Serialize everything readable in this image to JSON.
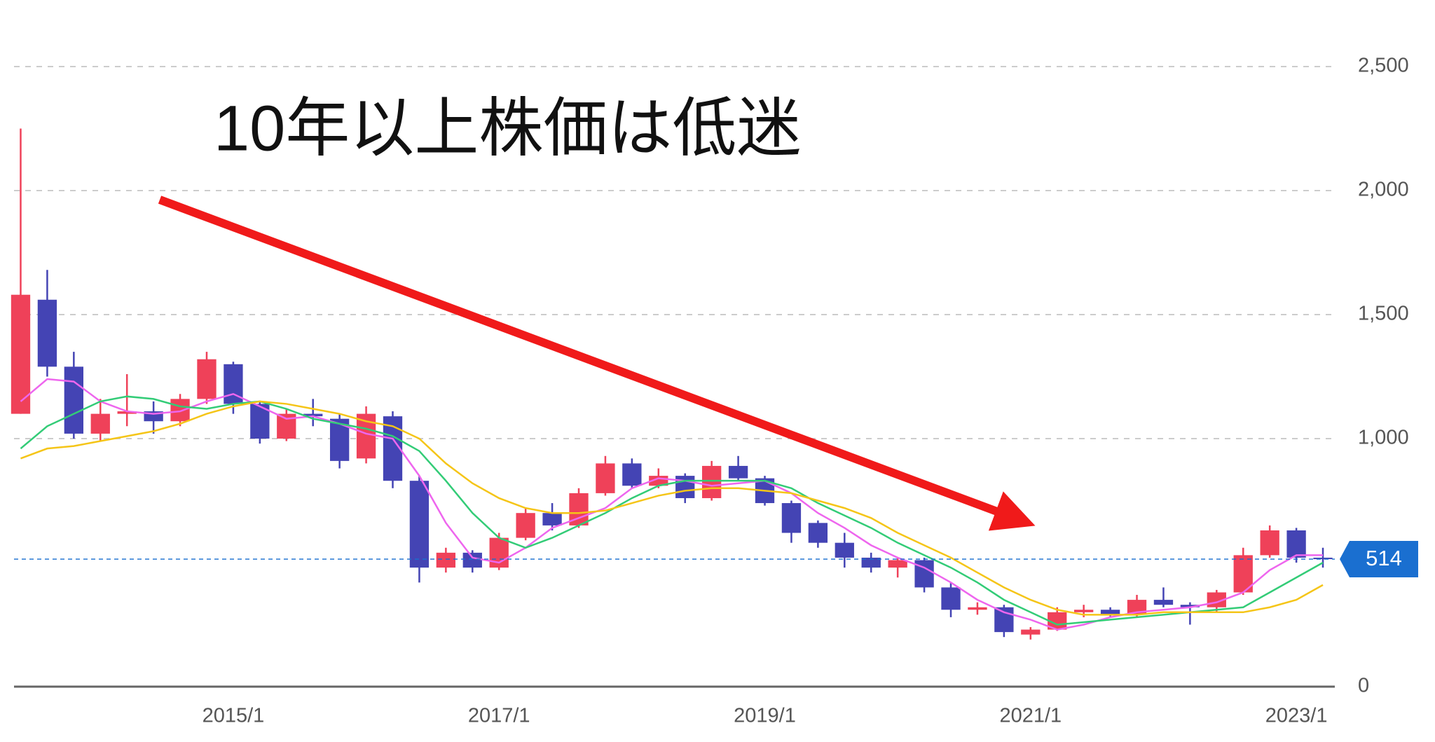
{
  "chart_data": {
    "type": "candlestick",
    "annotation": "10年以上株価は低迷",
    "x": [
      2013.4,
      2013.6,
      2013.8,
      2014.0,
      2014.2,
      2014.4,
      2014.6,
      2014.8,
      2015.0,
      2015.2,
      2015.4,
      2015.6,
      2015.8,
      2016.0,
      2016.2,
      2016.4,
      2016.6,
      2016.8,
      2017.0,
      2017.2,
      2017.4,
      2017.6,
      2017.8,
      2018.0,
      2018.2,
      2018.4,
      2018.6,
      2018.8,
      2019.0,
      2019.2,
      2019.4,
      2019.6,
      2019.8,
      2020.0,
      2020.2,
      2020.4,
      2020.6,
      2020.8,
      2021.0,
      2021.2,
      2021.4,
      2021.6,
      2021.8,
      2022.0,
      2022.2,
      2022.4,
      2022.6,
      2022.8,
      2023.0,
      2023.2
    ],
    "ohlc": [
      [
        1100,
        2250,
        1100,
        1580
      ],
      [
        1560,
        1680,
        1250,
        1290
      ],
      [
        1290,
        1350,
        1000,
        1020
      ],
      [
        1020,
        1160,
        990,
        1100
      ],
      [
        1100,
        1260,
        1050,
        1110
      ],
      [
        1110,
        1150,
        1020,
        1070
      ],
      [
        1070,
        1180,
        1050,
        1160
      ],
      [
        1160,
        1350,
        1140,
        1320
      ],
      [
        1300,
        1310,
        1100,
        1140
      ],
      [
        1140,
        1150,
        980,
        1000
      ],
      [
        1000,
        1120,
        990,
        1100
      ],
      [
        1100,
        1160,
        1050,
        1090
      ],
      [
        1080,
        1100,
        880,
        910
      ],
      [
        920,
        1130,
        900,
        1100
      ],
      [
        1090,
        1110,
        800,
        830
      ],
      [
        830,
        850,
        420,
        480
      ],
      [
        480,
        560,
        460,
        540
      ],
      [
        540,
        550,
        460,
        480
      ],
      [
        480,
        620,
        470,
        600
      ],
      [
        600,
        720,
        590,
        700
      ],
      [
        700,
        740,
        630,
        650
      ],
      [
        650,
        800,
        640,
        780
      ],
      [
        780,
        930,
        770,
        900
      ],
      [
        900,
        920,
        800,
        810
      ],
      [
        810,
        880,
        800,
        850
      ],
      [
        850,
        860,
        740,
        760
      ],
      [
        760,
        910,
        750,
        890
      ],
      [
        890,
        930,
        830,
        840
      ],
      [
        840,
        850,
        730,
        740
      ],
      [
        740,
        750,
        580,
        620
      ],
      [
        660,
        670,
        560,
        580
      ],
      [
        580,
        620,
        480,
        520
      ],
      [
        520,
        540,
        460,
        480
      ],
      [
        480,
        520,
        440,
        510
      ],
      [
        510,
        520,
        380,
        400
      ],
      [
        400,
        420,
        280,
        310
      ],
      [
        310,
        340,
        290,
        320
      ],
      [
        320,
        330,
        200,
        220
      ],
      [
        210,
        240,
        190,
        230
      ],
      [
        230,
        320,
        225,
        300
      ],
      [
        300,
        330,
        280,
        310
      ],
      [
        310,
        320,
        280,
        290
      ],
      [
        290,
        370,
        280,
        350
      ],
      [
        350,
        400,
        320,
        330
      ],
      [
        330,
        340,
        250,
        320
      ],
      [
        320,
        390,
        300,
        380
      ],
      [
        380,
        560,
        370,
        530
      ],
      [
        530,
        650,
        520,
        630
      ],
      [
        630,
        640,
        500,
        520
      ],
      [
        520,
        560,
        480,
        514
      ]
    ],
    "up_color": "#ef4159",
    "down_color": "#4444b4",
    "series": [
      {
        "color": "#ee66ee",
        "values": [
          1150,
          1240,
          1230,
          1150,
          1110,
          1100,
          1110,
          1150,
          1180,
          1130,
          1080,
          1090,
          1060,
          1020,
          1000,
          850,
          660,
          520,
          500,
          560,
          640,
          680,
          720,
          800,
          840,
          830,
          810,
          820,
          830,
          780,
          700,
          640,
          570,
          520,
          480,
          420,
          350,
          300,
          270,
          230,
          250,
          280,
          300,
          310,
          320,
          340,
          380,
          470,
          530,
          530
        ]
      },
      {
        "color": "#33cc77",
        "values": [
          960,
          1050,
          1100,
          1150,
          1170,
          1160,
          1130,
          1120,
          1140,
          1150,
          1120,
          1080,
          1060,
          1040,
          1010,
          950,
          830,
          700,
          600,
          560,
          600,
          650,
          700,
          760,
          810,
          830,
          830,
          830,
          830,
          800,
          740,
          690,
          640,
          580,
          530,
          480,
          420,
          350,
          300,
          250,
          260,
          270,
          280,
          290,
          300,
          310,
          320,
          380,
          440,
          500
        ]
      },
      {
        "color": "#f5c518",
        "values": [
          920,
          960,
          970,
          990,
          1010,
          1030,
          1060,
          1100,
          1130,
          1150,
          1140,
          1120,
          1100,
          1070,
          1050,
          1000,
          900,
          820,
          760,
          720,
          700,
          700,
          710,
          740,
          770,
          790,
          800,
          800,
          790,
          780,
          750,
          720,
          680,
          620,
          570,
          520,
          460,
          400,
          350,
          310,
          290,
          290,
          290,
          300,
          300,
          300,
          300,
          320,
          350,
          410
        ]
      }
    ],
    "last_price_color": "#1a6fd0",
    "xlim": [
      2013.35,
      2023.3
    ],
    "xticks": [
      {
        "value": 2015.0,
        "label": "2015/1"
      },
      {
        "value": 2017.0,
        "label": "2017/1"
      },
      {
        "value": 2019.0,
        "label": "2019/1"
      },
      {
        "value": 2021.0,
        "label": "2021/1"
      },
      {
        "value": 2023.0,
        "label": "2023/1"
      }
    ],
    "ylim": [
      0,
      2500
    ],
    "yticks": [
      0,
      {
        "value": 1000,
        "label": "1,000"
      },
      {
        "value": 1500,
        "label": "1,500"
      },
      {
        "value": 2000,
        "label": "2,000"
      },
      {
        "value": 2500,
        "label": "2,500"
      }
    ],
    "grid": true
  }
}
